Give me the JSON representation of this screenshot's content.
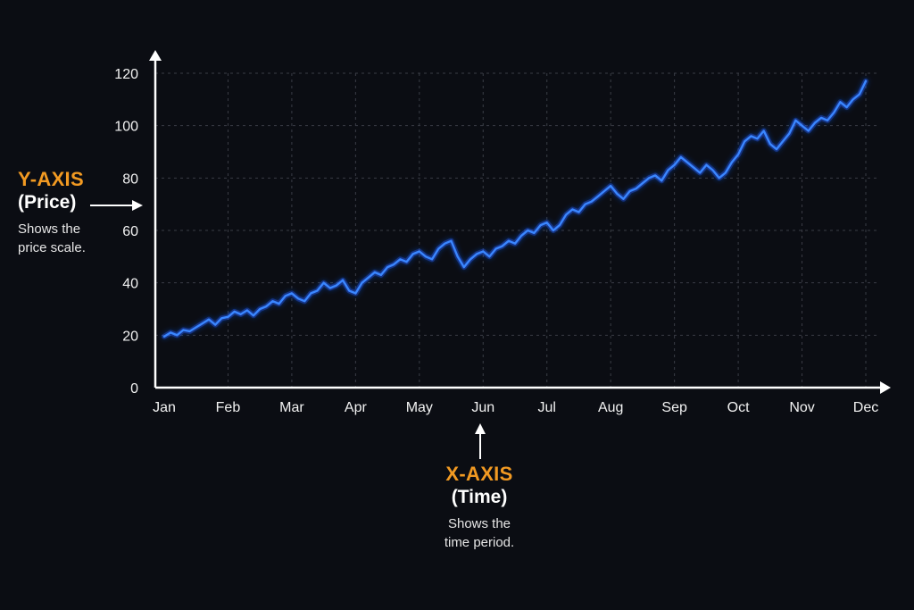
{
  "colors": {
    "background": "#0b0d13",
    "line": "#3a86ff",
    "line_glow": "#1f5eff",
    "axis": "#ffffff",
    "grid": "#3a3d46",
    "callout_title": "#f29a22"
  },
  "annotations": {
    "y_axis": {
      "title": "Y-AXIS",
      "subtitle": "(Price)",
      "description_line1": "Shows the",
      "description_line2": "price scale."
    },
    "x_axis": {
      "title": "X-AXIS",
      "subtitle": "(Time)",
      "description_line1": "Shows the",
      "description_line2": "time period."
    }
  },
  "chart_data": {
    "type": "line",
    "title": "",
    "xlabel": "",
    "ylabel": "",
    "grid": true,
    "legend": "none",
    "categories": [
      "Jan",
      "Feb",
      "Mar",
      "Apr",
      "May",
      "Jun",
      "Jul",
      "Aug",
      "Sep",
      "Oct",
      "Nov",
      "Dec"
    ],
    "y_ticks": [
      0,
      20,
      40,
      60,
      80,
      100,
      120
    ],
    "ylim": [
      0,
      120
    ],
    "xlim": [
      0,
      11
    ],
    "series": [
      {
        "x": [
          0,
          0.1,
          0.2,
          0.3,
          0.4,
          0.5,
          0.6,
          0.7,
          0.8,
          0.9,
          1.0,
          1.1,
          1.2,
          1.3,
          1.4,
          1.5,
          1.6,
          1.7,
          1.8,
          1.9,
          2.0,
          2.1,
          2.2,
          2.3,
          2.4,
          2.5,
          2.6,
          2.7,
          2.8,
          2.9,
          3.0,
          3.1,
          3.2,
          3.3,
          3.4,
          3.5,
          3.6,
          3.7,
          3.8,
          3.9,
          4.0,
          4.1,
          4.2,
          4.3,
          4.4,
          4.5,
          4.6,
          4.7,
          4.8,
          4.9,
          5.0,
          5.1,
          5.2,
          5.3,
          5.4,
          5.5,
          5.6,
          5.7,
          5.8,
          5.9,
          6.0,
          6.1,
          6.2,
          6.3,
          6.4,
          6.5,
          6.6,
          6.7,
          6.8,
          6.9,
          7.0,
          7.1,
          7.2,
          7.3,
          7.4,
          7.5,
          7.6,
          7.7,
          7.8,
          7.9,
          8.0,
          8.1,
          8.2,
          8.3,
          8.4,
          8.5,
          8.6,
          8.7,
          8.8,
          8.9,
          9.0,
          9.1,
          9.2,
          9.3,
          9.4,
          9.5,
          9.6,
          9.7,
          9.8,
          9.9,
          10.0,
          10.1,
          10.2,
          10.3,
          10.4,
          10.5,
          10.6,
          10.7,
          10.8,
          10.9,
          11.0
        ],
        "values": [
          19.5,
          21,
          20,
          22,
          21.5,
          23,
          24.5,
          26,
          24,
          26.5,
          27,
          29,
          28,
          29.5,
          27.5,
          30,
          31,
          33,
          32,
          35,
          36,
          34,
          33,
          36,
          37,
          40,
          38,
          39,
          41,
          37,
          36,
          40,
          42,
          44,
          43,
          46,
          47,
          49,
          48,
          51,
          52,
          50,
          49,
          53,
          55,
          56,
          50,
          46,
          49,
          51,
          52,
          50,
          53,
          54,
          56,
          55,
          58,
          60,
          59,
          62,
          63,
          60,
          62,
          66,
          68,
          67,
          70,
          71,
          73,
          75,
          77,
          74,
          72,
          75,
          76,
          78,
          80,
          81,
          79,
          83,
          85,
          88,
          86,
          84,
          82,
          85,
          83,
          80,
          82,
          86,
          89,
          94,
          96,
          95,
          98,
          93,
          91,
          94,
          97,
          102,
          100,
          98,
          101,
          103,
          102,
          105,
          109,
          107,
          110,
          112,
          117
        ]
      }
    ]
  }
}
